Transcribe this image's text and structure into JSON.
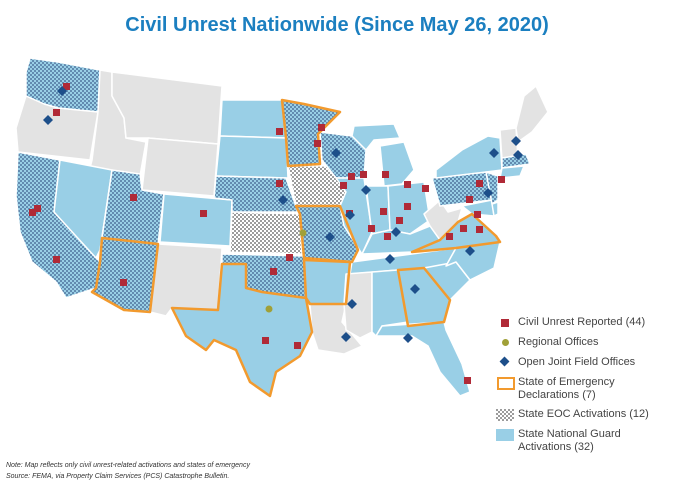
{
  "title": "Civil Unrest Nationwide (Since May 26, 2020)",
  "legend": [
    {
      "key": "red-square",
      "label": "Civil Unrest Reported (44)"
    },
    {
      "key": "olive-dot",
      "label": "Regional Offices"
    },
    {
      "key": "blue-diamond",
      "label": "Open Joint Field Offices"
    },
    {
      "key": "orange-outline",
      "label": "State of Emergency Declarations (7)"
    },
    {
      "key": "dotted-pattern",
      "label": "State EOC Activations (12)"
    },
    {
      "key": "light-blue",
      "label": "State National Guard Activations (32)"
    }
  ],
  "note_line1": "Note: Map reflects only civil unrest-related activations and states of emergency",
  "note_line2": "Source: FEMA, via Property Claim Services (PCS) Catastrophe Bulletin.",
  "colors": {
    "title": "#1b7fc0",
    "guard": "#99cfe6",
    "not_activated": "#e3e3e3",
    "unrest": "#b02a37",
    "regional": "#a0a038",
    "jfo": "#1d4f8a",
    "emergency": "#f29a2e",
    "eoc_dots": "#3a5a8a"
  }
}
